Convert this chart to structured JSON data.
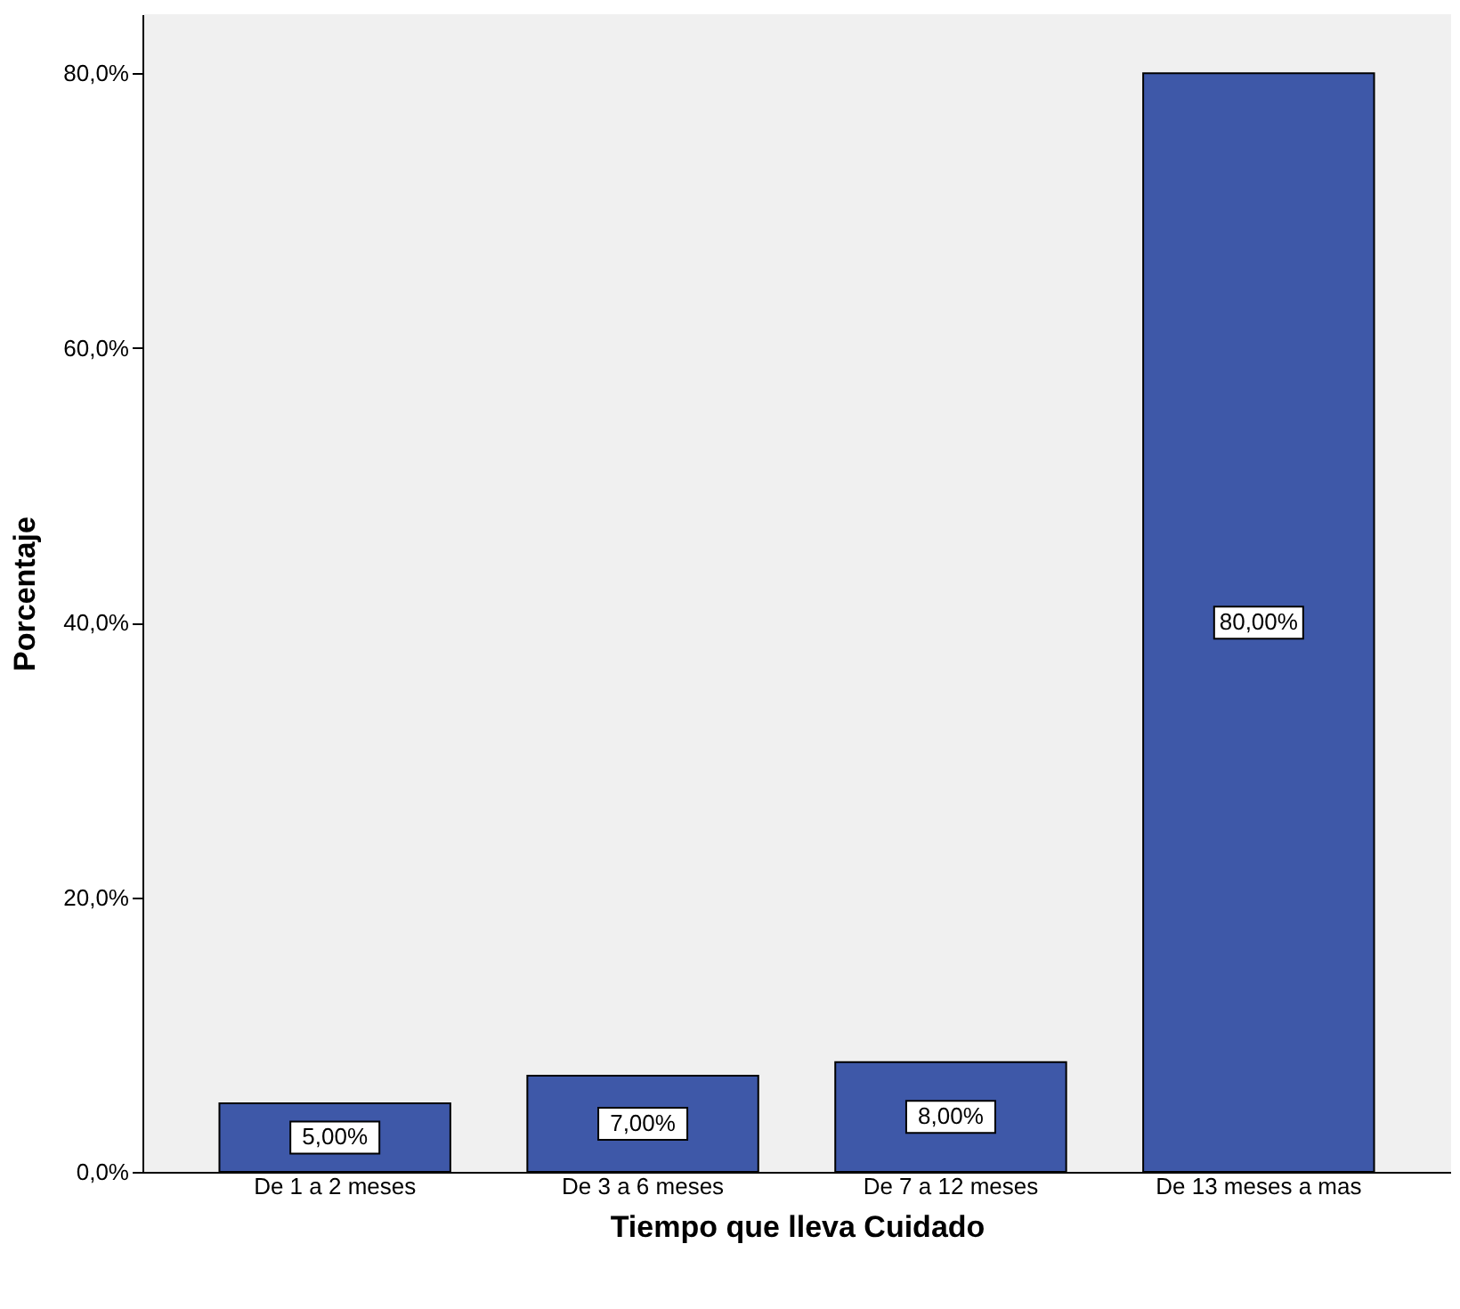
{
  "chart_data": {
    "type": "bar",
    "xlabel": "Tiempo que lleva Cuidado",
    "ylabel": "Porcentaje",
    "categories": [
      "De 1 a 2 meses",
      "De 3 a 6 meses",
      "De 7 a 12 meses",
      "De 13 meses a mas"
    ],
    "values": [
      5,
      7,
      8,
      80
    ],
    "color": "#3e58a8",
    "value_labels": [
      "5,00%",
      "7,00%",
      "8,00%",
      "80,00%"
    ],
    "ylim": [
      0,
      84.3
    ],
    "yticks": [
      {
        "value": 0,
        "label": "0,0%"
      },
      {
        "value": 20,
        "label": "20,0%"
      },
      {
        "value": 40,
        "label": "40,0%"
      },
      {
        "value": 60,
        "label": "60,0%"
      },
      {
        "value": 80,
        "label": "80,0%"
      }
    ],
    "grid": false
  }
}
